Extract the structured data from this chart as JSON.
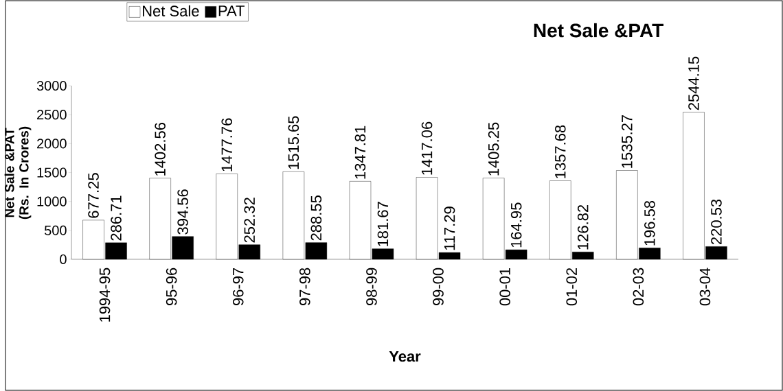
{
  "chart_data": {
    "type": "bar",
    "title": "Net Sale &PAT",
    "xlabel": "Year",
    "ylabel": "Net Sale &PAT (Rs. In Crores)",
    "categories": [
      "1994-95",
      "95-96",
      "96-97",
      "97-98",
      "98-99",
      "99-00",
      "00-01",
      "01-02",
      "02-03",
      "03-04"
    ],
    "series": [
      {
        "name": "Net Sale",
        "color": "#ffffff",
        "values": [
          677.25,
          1402.56,
          1477.76,
          1515.65,
          1347.81,
          1417.06,
          1405.25,
          1357.68,
          1535.27,
          2544.15
        ]
      },
      {
        "name": "PAT",
        "color": "#000000",
        "values": [
          286.71,
          394.56,
          252.32,
          288.55,
          181.67,
          117.29,
          164.95,
          126.82,
          196.58,
          220.53
        ]
      }
    ],
    "ylim": [
      0,
      3000
    ],
    "yticks": [
      0,
      500,
      1000,
      1500,
      2000,
      2500,
      3000
    ],
    "data_labels": true,
    "legend": "top left",
    "grid": false
  }
}
